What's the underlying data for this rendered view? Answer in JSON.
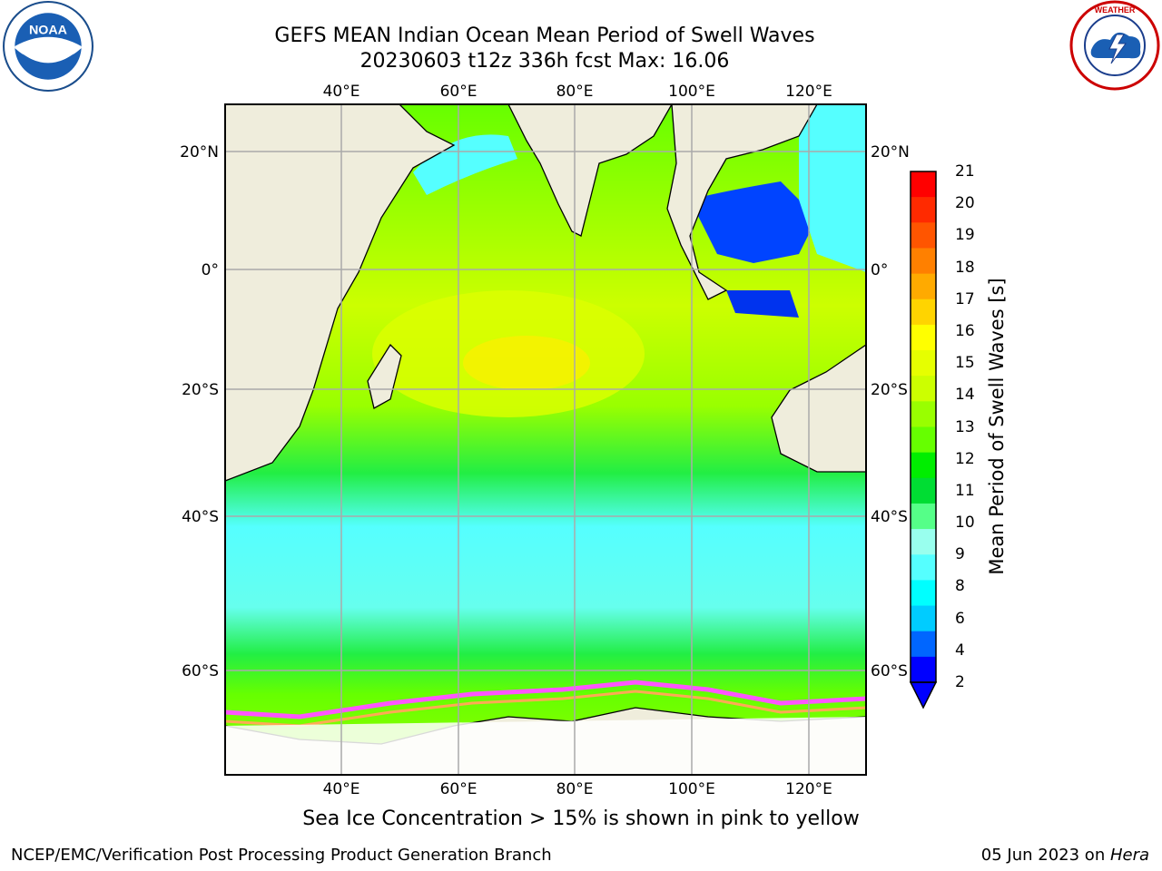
{
  "title": {
    "line1": "GEFS MEAN Indian Ocean Mean Period of Swell Waves",
    "line2": "20230603 t12z 336h fcst   Max: 16.06"
  },
  "logos": {
    "left": {
      "name": "noaa-logo",
      "text": "NOAA",
      "ring_text": "NATIONAL OCEANIC AND ATMOSPHERIC ADMINISTRATION · U.S. DEPARTMENT OF COMMERCE"
    },
    "right": {
      "name": "nws-logo",
      "ring_text": "NATIONAL WEATHER SERVICE"
    }
  },
  "map": {
    "lon_ticks_top": [
      "40°E",
      "60°E",
      "80°E",
      "100°E",
      "120°E"
    ],
    "lon_ticks_bottom": [
      "40°E",
      "60°E",
      "80°E",
      "100°E",
      "120°E"
    ],
    "lat_ticks_left": [
      "20°N",
      "0°",
      "20°S",
      "40°S",
      "60°S"
    ],
    "lat_ticks_right": [
      "20°N",
      "0°",
      "20°S",
      "40°S",
      "60°S"
    ],
    "lon_values": [
      40,
      60,
      80,
      100,
      120
    ],
    "lat_values": [
      20,
      0,
      -20,
      -40,
      -60
    ],
    "land_color": "#efeddc",
    "ice_free_color": "#ffffff",
    "sea_ice_colors": [
      "#ff55ff",
      "#ffaa55",
      "#ffee55"
    ]
  },
  "colorbar": {
    "label": "Mean Period of Swell Waves [s]",
    "ticks": [
      "21",
      "20",
      "19",
      "18",
      "17",
      "16",
      "15",
      "14",
      "13",
      "12",
      "11",
      "10",
      "9",
      "8",
      "6",
      "4",
      "2"
    ],
    "colors": [
      "#ff0000",
      "#ff2a00",
      "#ff5500",
      "#ff8000",
      "#ffaa00",
      "#ffd400",
      "#ffff00",
      "#e6ff00",
      "#ccff00",
      "#99ff00",
      "#66ff00",
      "#00ee00",
      "#00dd33",
      "#55ff88",
      "#99ffee",
      "#55ffff",
      "#00ffff",
      "#00ccff",
      "#0066ff",
      "#0000ff"
    ]
  },
  "footer": {
    "note": "Sea Ice Concentration > 15% is shown in pink to yellow",
    "credit": "NCEP/EMC/Verification Post Processing Product Generation Branch",
    "date_prefix": "05 Jun 2023 on ",
    "date_machine": "Hera"
  }
}
